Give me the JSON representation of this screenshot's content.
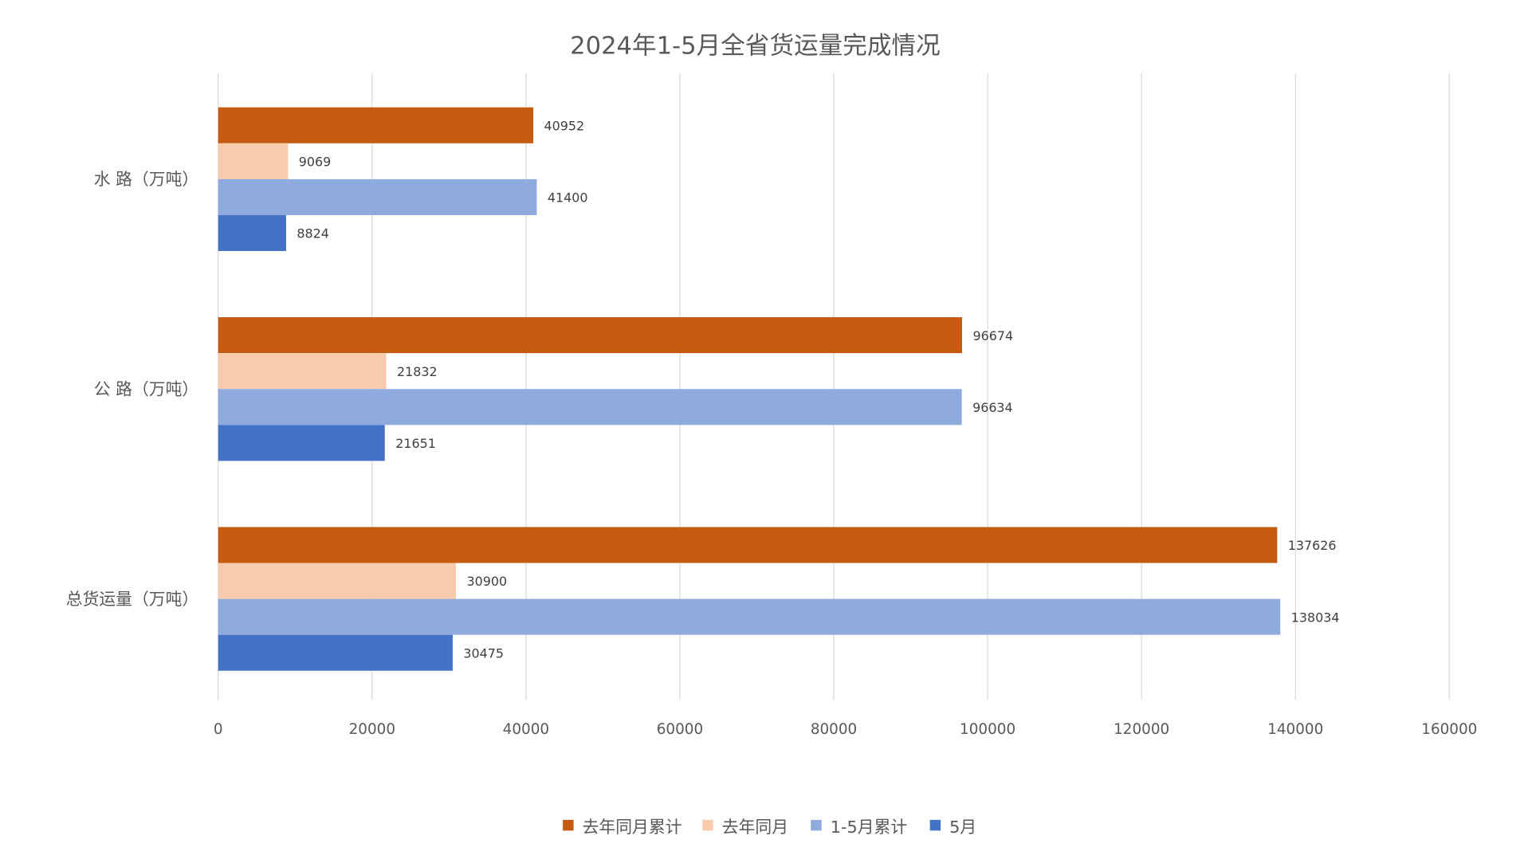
{
  "chart_data": {
    "type": "bar",
    "orientation": "horizontal",
    "title": "2024年1-5月全省货运量完成情况",
    "categories": [
      "水 路（万吨）",
      "公 路（万吨）",
      "总货运量（万吨）"
    ],
    "series": [
      {
        "name": "去年同月累计",
        "color": "#C55A11",
        "values": [
          40952,
          96674,
          137626
        ]
      },
      {
        "name": "去年同月",
        "color": "#F8CBAD",
        "values": [
          9069,
          21832,
          30900
        ]
      },
      {
        "name": "1-5月累计",
        "color": "#8FAADC",
        "values": [
          41400,
          96634,
          138034
        ]
      },
      {
        "name": "5月",
        "color": "#4472C4",
        "values": [
          8824,
          21651,
          30475
        ]
      }
    ],
    "xlim": [
      0,
      160000
    ],
    "xticks": [
      "0",
      "20000",
      "40000",
      "60000",
      "80000",
      "100000",
      "120000",
      "140000",
      "160000"
    ],
    "xlabel": "",
    "ylabel": "",
    "grid": true,
    "legend_position": "bottom"
  }
}
